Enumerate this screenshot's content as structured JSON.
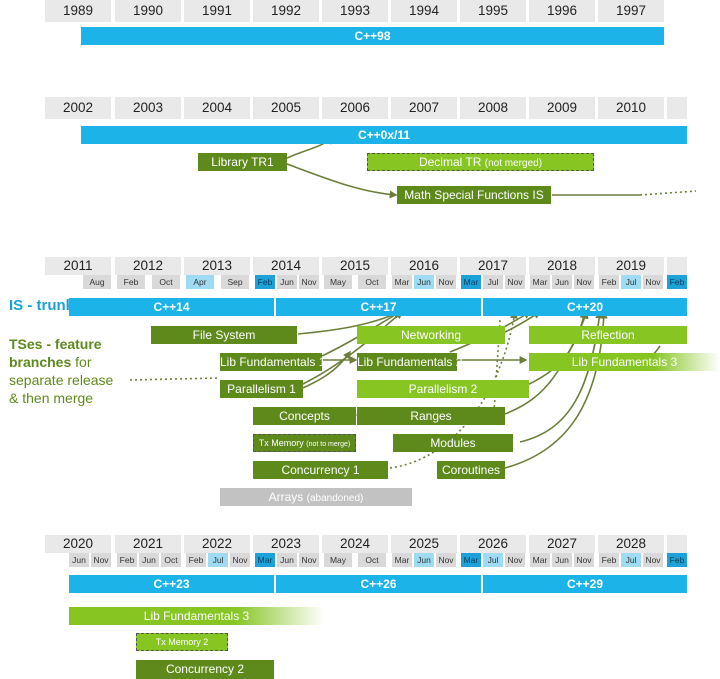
{
  "sections": [
    {
      "years": [
        "1989",
        "1990",
        "1991",
        "1992",
        "1993",
        "1994",
        "1995",
        "1996",
        "1997"
      ],
      "trunk": [
        "C++98"
      ]
    },
    {
      "years": [
        "2002",
        "2003",
        "2004",
        "2005",
        "2006",
        "2007",
        "2008",
        "2009",
        "2010"
      ],
      "trunk": [
        "C++0x/11"
      ],
      "branches": {
        "library_tr1": "Library TR1",
        "decimal_tr": "Decimal TR",
        "decimal_tr_note": "(not merged)",
        "math_special": "Math Special Functions IS"
      }
    },
    {
      "years": [
        "2011",
        "2012",
        "2013",
        "2014",
        "2015",
        "2016",
        "2017",
        "2018",
        "2019"
      ],
      "months": [
        "Aug",
        "Feb",
        "Oct",
        "Apr",
        "Sep",
        "Feb",
        "Jun",
        "Nov",
        "May",
        "Oct",
        "Mar",
        "Jun",
        "Nov",
        "Mar",
        "Jul",
        "Nov",
        "Mar",
        "Jun",
        "Nov",
        "Feb",
        "Jul",
        "Nov",
        "Feb"
      ],
      "trunk": [
        "C++14",
        "C++17",
        "C++20"
      ],
      "labels": {
        "is": "IS - trunk",
        "ts_bold": "TSes - feature branches",
        "ts_rest": " for separate release & then merge"
      },
      "branches": {
        "file_system": "File System",
        "networking": "Networking",
        "reflection": "Reflection",
        "lib_fund_1": "Lib Fundamentals 1",
        "lib_fund_2": "Lib Fundamentals 2",
        "lib_fund_3": "Lib Fundamentals 3",
        "parallelism_1": "Parallelism 1",
        "parallelism_2": "Parallelism 2",
        "concepts": "Concepts",
        "ranges": "Ranges",
        "tx_memory": "Tx Memory",
        "tx_memory_note": "(not to merge)",
        "modules": "Modules",
        "concurrency_1": "Concurrency 1",
        "coroutines": "Coroutines",
        "arrays": "Arrays",
        "arrays_note": "(abandoned)"
      }
    },
    {
      "years": [
        "2020",
        "2021",
        "2022",
        "2023",
        "2024",
        "2025",
        "2026",
        "2027",
        "2028"
      ],
      "months": [
        "Jun",
        "Nov",
        "Feb",
        "Jun",
        "Oct",
        "Feb",
        "Jul",
        "Nov",
        "Mar",
        "Jun",
        "Nov",
        "May",
        "Oct",
        "Mar",
        "Jun",
        "Nov",
        "Mar",
        "Jul",
        "Nov",
        "Mar",
        "Jun",
        "Nov",
        "Feb",
        "Jul",
        "Nov",
        "Feb"
      ],
      "trunk": [
        "C++23",
        "C++26",
        "C++29"
      ],
      "branches": {
        "lib_fund_3": "Lib Fundamentals 3",
        "tx_memory_2": "Tx Memory 2",
        "concurrency_2": "Concurrency 2"
      }
    }
  ],
  "colors": {
    "trunk": "#1cb4e8",
    "branch_dark": "#5e8a1c",
    "branch_light": "#86c522",
    "abandoned": "#c2c2c2"
  }
}
